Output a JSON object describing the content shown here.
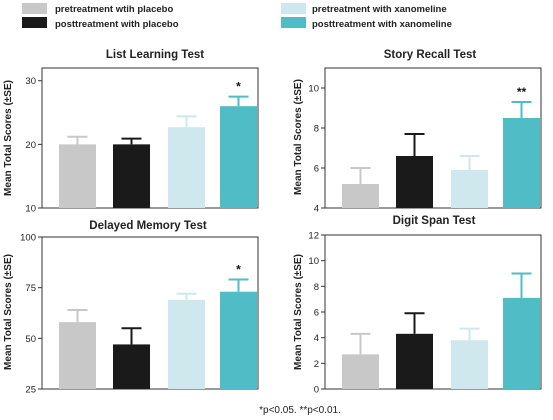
{
  "legend": [
    {
      "label": "pretreatment wtih placebo",
      "color": "#c8c8c8"
    },
    {
      "label": "posttreatment with placebo",
      "color": "#1a1a1a"
    },
    {
      "label": "pretreatment with xanomeline",
      "color": "#cfe8ee"
    },
    {
      "label": "posttreatment with xanomeline",
      "color": "#4fbcc6"
    }
  ],
  "footnote": "*p<0.05. **p<0.01.",
  "chart_data": [
    {
      "type": "bar",
      "title": "List Learning Test",
      "ylabel": "Mean Total Scores (±SE)",
      "ylim": [
        10,
        32
      ],
      "yticks": [
        10,
        20,
        30
      ],
      "categories": [
        "pretreatment wtih placebo",
        "posttreatment with placebo",
        "pretreatment with xanomeline",
        "posttreatment with xanomeline"
      ],
      "values": [
        20.0,
        20.0,
        22.7,
        26.0
      ],
      "errors": [
        1.2,
        0.9,
        1.7,
        1.5
      ],
      "significance": [
        "",
        "",
        "",
        "*"
      ]
    },
    {
      "type": "bar",
      "title": "Story Recall Test",
      "ylabel": "Mean Total Scores (±SE)",
      "ylim": [
        4,
        11
      ],
      "yticks": [
        4,
        6,
        8,
        10
      ],
      "categories": [
        "pretreatment wtih placebo",
        "posttreatment with placebo",
        "pretreatment with xanomeline",
        "posttreatment with xanomeline"
      ],
      "values": [
        5.2,
        6.6,
        5.9,
        8.5
      ],
      "errors": [
        0.8,
        1.1,
        0.7,
        0.8
      ],
      "significance": [
        "",
        "",
        "",
        "**"
      ]
    },
    {
      "type": "bar",
      "title": "Delayed Memory Test",
      "ylabel": "Mean Total Scores (±SE)",
      "ylim": [
        25,
        100
      ],
      "yticks": [
        25,
        50,
        75,
        100
      ],
      "categories": [
        "pretreatment wtih placebo",
        "posttreatment with placebo",
        "pretreatment with xanomeline",
        "posttreatment with xanomeline"
      ],
      "values": [
        58,
        47,
        69,
        73
      ],
      "errors": [
        6,
        8,
        3,
        6
      ],
      "significance": [
        "",
        "",
        "",
        "*"
      ]
    },
    {
      "type": "bar",
      "title": "Digit Span Test",
      "ylabel": "Mean Total Scores (±SE)",
      "ylim": [
        0,
        12
      ],
      "yticks": [
        0,
        2,
        4,
        6,
        8,
        10,
        12
      ],
      "categories": [
        "pretreatment wtih placebo",
        "posttreatment with placebo",
        "pretreatment with xanomeline",
        "posttreatment with xanomeline"
      ],
      "values": [
        2.7,
        4.3,
        3.8,
        7.1
      ],
      "errors": [
        1.6,
        1.6,
        0.9,
        1.9
      ],
      "significance": [
        "",
        "",
        "",
        ""
      ]
    }
  ]
}
